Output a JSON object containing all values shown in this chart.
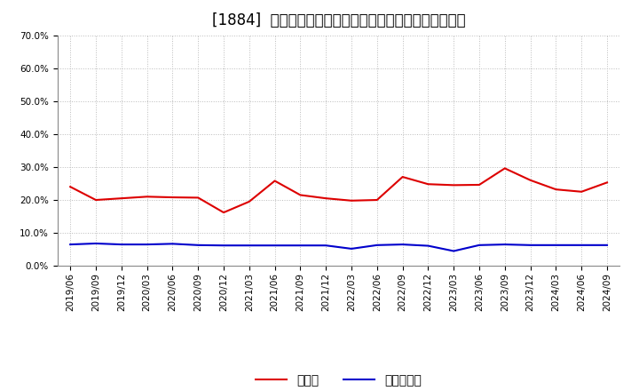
{
  "title": "[1884]  現頃金、有利子負債の総資産に対する比率の推移",
  "x_labels": [
    "2019/06",
    "2019/09",
    "2019/12",
    "2020/03",
    "2020/06",
    "2020/09",
    "2020/12",
    "2021/03",
    "2021/06",
    "2021/09",
    "2021/12",
    "2022/03",
    "2022/06",
    "2022/09",
    "2022/12",
    "2023/03",
    "2023/06",
    "2023/09",
    "2023/12",
    "2024/03",
    "2024/06",
    "2024/09"
  ],
  "cash": [
    0.24,
    0.2,
    0.205,
    0.21,
    0.208,
    0.207,
    0.162,
    0.195,
    0.258,
    0.215,
    0.205,
    0.198,
    0.2,
    0.27,
    0.248,
    0.245,
    0.246,
    0.296,
    0.26,
    0.232,
    0.225,
    0.253
  ],
  "debt": [
    0.065,
    0.068,
    0.065,
    0.065,
    0.067,
    0.063,
    0.062,
    0.062,
    0.062,
    0.062,
    0.062,
    0.052,
    0.063,
    0.065,
    0.061,
    0.045,
    0.063,
    0.065,
    0.063,
    0.063,
    0.063,
    0.063
  ],
  "cash_color": "#dd0000",
  "debt_color": "#0000cc",
  "ylim": [
    0.0,
    0.7
  ],
  "yticks": [
    0.0,
    0.1,
    0.2,
    0.3,
    0.4,
    0.5,
    0.6,
    0.7
  ],
  "legend_cash": "現頃金",
  "legend_debt": "有利子負債",
  "background_color": "#ffffff",
  "plot_bg_color": "#ffffff",
  "grid_color": "#bbbbbb",
  "title_fontsize": 12,
  "tick_fontsize": 7.5,
  "legend_fontsize": 10
}
